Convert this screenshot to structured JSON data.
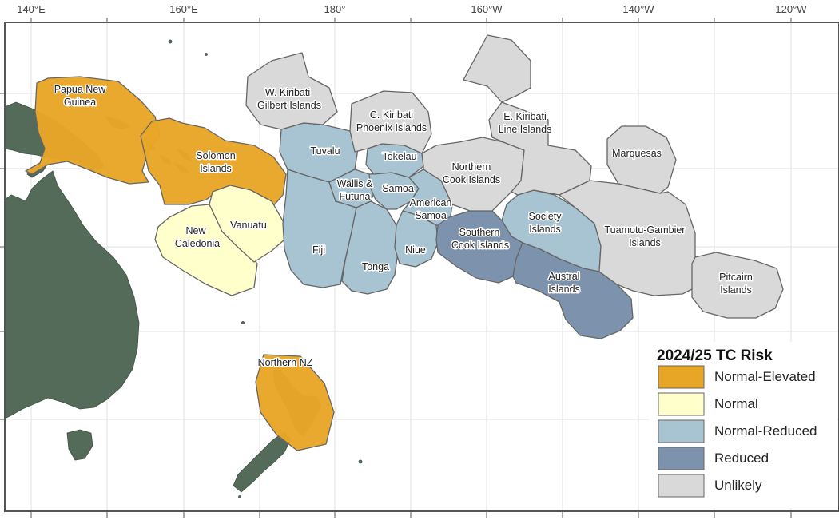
{
  "axis": {
    "longitude_labels": [
      "140°E",
      "160°E",
      "180°",
      "160°W",
      "140°W",
      "120°W"
    ]
  },
  "legend": {
    "title": "2024/25 TC Risk",
    "categories": [
      {
        "label": "Normal-Elevated",
        "color": "#e8a627"
      },
      {
        "label": "Normal",
        "color": "#ffffcc"
      },
      {
        "label": "Normal-Reduced",
        "color": "#a8c3d1"
      },
      {
        "label": "Reduced",
        "color": "#7d93ad"
      },
      {
        "label": "Unlikely",
        "color": "#d9d9d9"
      }
    ]
  },
  "regions": {
    "papua_new_guinea": {
      "line1": "Papua New",
      "line2": "Guinea",
      "risk": "Normal-Elevated"
    },
    "solomon_islands": {
      "line1": "Solomon",
      "line2": "Islands",
      "risk": "Normal-Elevated"
    },
    "vanuatu": {
      "line1": "Vanuatu",
      "risk": "Normal"
    },
    "new_caledonia": {
      "line1": "New",
      "line2": "Caledonia",
      "risk": "Normal"
    },
    "northern_nz": {
      "line1": "Northern NZ",
      "risk": "Normal-Elevated"
    },
    "w_kiribati": {
      "line1": "W. Kiribati",
      "line2": "Gilbert Islands",
      "risk": "Unlikely"
    },
    "tuvalu": {
      "line1": "Tuvalu",
      "risk": "Normal-Reduced"
    },
    "wallis_futuna": {
      "line1": "Wallis &",
      "line2": "Futuna",
      "risk": "Normal-Reduced"
    },
    "fiji": {
      "line1": "Fiji",
      "risk": "Normal-Reduced"
    },
    "tonga": {
      "line1": "Tonga",
      "risk": "Normal-Reduced"
    },
    "samoa": {
      "line1": "Samoa",
      "risk": "Normal-Reduced"
    },
    "american_samoa": {
      "line1": "American",
      "line2": "Samoa",
      "risk": "Normal-Reduced"
    },
    "niue": {
      "line1": "Niue",
      "risk": "Normal-Reduced"
    },
    "tokelau": {
      "line1": "Tokelau",
      "risk": "Normal-Reduced"
    },
    "c_kiribati": {
      "line1": "C. Kiribati",
      "line2": "Phoenix Islands",
      "risk": "Unlikely"
    },
    "northern_cook": {
      "line1": "Northern",
      "line2": "Cook Islands",
      "risk": "Unlikely"
    },
    "southern_cook": {
      "line1": "Southern",
      "line2": "Cook Islands",
      "risk": "Reduced"
    },
    "society_islands": {
      "line1": "Society",
      "line2": "Islands",
      "risk": "Normal-Reduced"
    },
    "austral_islands": {
      "line1": "Austral",
      "line2": "Islands",
      "risk": "Reduced"
    },
    "e_kiribati": {
      "line1": "E. Kiribati",
      "line2": "Line Islands",
      "risk": "Unlikely"
    },
    "marquesas": {
      "line1": "Marquesas",
      "risk": "Unlikely"
    },
    "tuamotu_gambier": {
      "line1": "Tuamotu-Gambier",
      "line2": "Islands",
      "risk": "Unlikely"
    },
    "pitcairn": {
      "line1": "Pitcairn",
      "line2": "Islands",
      "risk": "Unlikely"
    }
  },
  "colors": {
    "land": "#556b5a",
    "border": "#666666",
    "grid": "#e0e0e0",
    "frame": "#555555"
  }
}
